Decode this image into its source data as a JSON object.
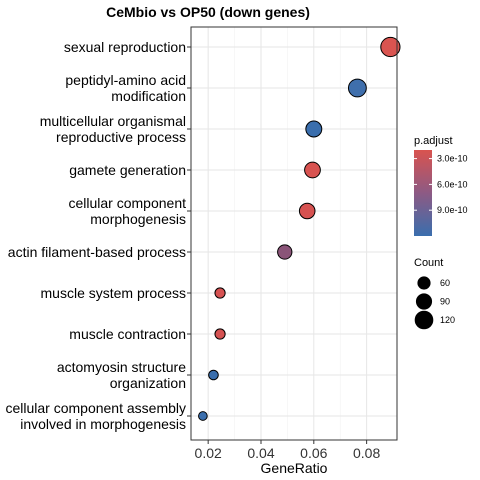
{
  "chart_data": {
    "type": "scatter",
    "title": "CeMbio vs OP50 (down genes)",
    "xlabel": "GeneRatio",
    "ylabel": "",
    "xlim": [
      0.0135,
      0.0915
    ],
    "x_ticks": [
      {
        "value": 0.02,
        "label": "0.02"
      },
      {
        "value": 0.04,
        "label": "0.04"
      },
      {
        "value": 0.06,
        "label": "0.06"
      },
      {
        "value": 0.08,
        "label": "0.08"
      }
    ],
    "grid": true,
    "points": [
      {
        "term": [
          "sexual reproduction"
        ],
        "x": 0.089,
        "count": 128,
        "p_adjust": 3.3e-10,
        "color": "#d95450"
      },
      {
        "term": [
          "peptidyl-amino acid",
          "modification"
        ],
        "x": 0.0765,
        "count": 110,
        "p_adjust": 1.15e-09,
        "color": "#3f6fac"
      },
      {
        "term": [
          "multicellular organismal",
          "reproductive process"
        ],
        "x": 0.06,
        "count": 88,
        "p_adjust": 1.2e-09,
        "color": "#3a6ead"
      },
      {
        "term": [
          "gamete generation"
        ],
        "x": 0.0595,
        "count": 86,
        "p_adjust": 3.4e-10,
        "color": "#d85350"
      },
      {
        "term": [
          "cellular component",
          "morphogenesis"
        ],
        "x": 0.0575,
        "count": 84,
        "p_adjust": 3.6e-10,
        "color": "#d65251"
      },
      {
        "term": [
          "actin filament-based process"
        ],
        "x": 0.049,
        "count": 71,
        "p_adjust": 7.3e-10,
        "color": "#8a5478"
      },
      {
        "term": [
          "muscle system process"
        ],
        "x": 0.0245,
        "count": 36,
        "p_adjust": 3.4e-10,
        "color": "#d65252"
      },
      {
        "term": [
          "muscle contraction"
        ],
        "x": 0.0245,
        "count": 36,
        "p_adjust": 3.5e-10,
        "color": "#d55252"
      },
      {
        "term": [
          "actomyosin structure",
          "organization"
        ],
        "x": 0.022,
        "count": 32,
        "p_adjust": 1.2e-09,
        "color": "#3a6ead"
      },
      {
        "term": [
          "cellular component assembly",
          "involved in morphogenesis"
        ],
        "x": 0.018,
        "count": 26,
        "p_adjust": 1.2e-09,
        "color": "#3a6ead"
      }
    ],
    "color_legend": {
      "title": "p.adjust",
      "low_color": "#d9534f",
      "high_color": "#3a6ead",
      "range": [
        2e-10,
        1.2e-09
      ],
      "ticks": [
        {
          "value": 3e-10,
          "label": "3.0e-10"
        },
        {
          "value": 6e-10,
          "label": "6.0e-10"
        },
        {
          "value": 9e-10,
          "label": "9.0e-10"
        }
      ]
    },
    "size_legend": {
      "title": "Count",
      "entries": [
        {
          "value": 60,
          "label": "60"
        },
        {
          "value": 90,
          "label": "90"
        },
        {
          "value": 120,
          "label": "120"
        }
      ]
    },
    "legend_position": "right"
  }
}
